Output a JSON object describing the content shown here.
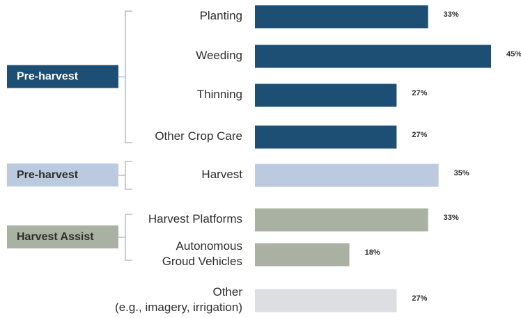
{
  "chart_data": {
    "type": "bar",
    "categories": [
      "Planting",
      "Weeding",
      "Thinning",
      "Other Crop Care",
      "Harvest",
      "Harvest Platforms",
      "Autonomous\nGroud Vehicles",
      "Other\n(e.g., imagery, irrigation)"
    ],
    "series": [
      {
        "name": "Pre-harvest",
        "color": "#1d4e73",
        "values": [
          33,
          45,
          27,
          27,
          null,
          null,
          null,
          null
        ],
        "value_labels": [
          "33%",
          "45%",
          "27%",
          "27%",
          null,
          null,
          null,
          null
        ]
      },
      {
        "name": "Pre-harvest",
        "color": "#bccadf",
        "values": [
          null,
          null,
          null,
          null,
          35,
          null,
          null,
          null
        ],
        "value_labels": [
          null,
          null,
          null,
          null,
          "35%",
          null,
          null,
          null
        ]
      },
      {
        "name": "Harvest Assist",
        "color": "#a9b1a3",
        "values": [
          null,
          null,
          null,
          null,
          null,
          33,
          18,
          null
        ],
        "value_labels": [
          null,
          null,
          null,
          null,
          null,
          "33%",
          "18%",
          null
        ]
      },
      {
        "color": "#dddee2",
        "values": [
          null,
          null,
          null,
          null,
          null,
          null,
          null,
          27
        ],
        "value_labels": [
          null,
          null,
          null,
          null,
          null,
          null,
          null,
          "27%"
        ]
      }
    ]
  }
}
